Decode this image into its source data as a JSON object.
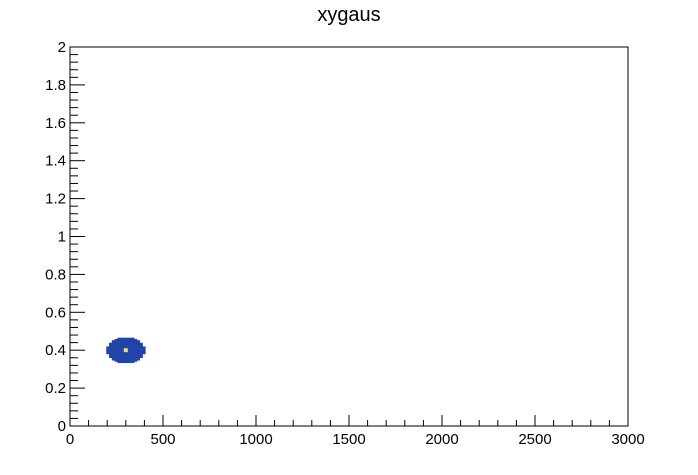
{
  "chart_data": {
    "type": "heatmap",
    "title": "xygaus",
    "xlim": [
      0,
      3000
    ],
    "ylim": [
      0,
      2
    ],
    "x_major_ticks": [
      0,
      500,
      1000,
      1500,
      2000,
      2500,
      3000
    ],
    "x_tick_labels": [
      "0",
      "500",
      "1000",
      "1500",
      "2000",
      "2500",
      "3000"
    ],
    "y_major_ticks": [
      0,
      0.2,
      0.4,
      0.6,
      0.8,
      1,
      1.2,
      1.4,
      1.6,
      1.8,
      2
    ],
    "y_tick_labels": [
      "0",
      "0.2",
      "0.4",
      "0.6",
      "0.8",
      "1",
      "1.2",
      "1.4",
      "1.6",
      "1.8",
      "2"
    ],
    "x_minor_step": 100,
    "y_minor_step": 0.04,
    "grid": false,
    "legend": "none",
    "blob": {
      "center_x": 300,
      "center_y": 0.4,
      "sigma_x": 60,
      "sigma_y": 0.038,
      "cell_x": 15,
      "cell_y": 0.0066,
      "color_main": "#2244aa",
      "color_peak": "#e8e070"
    }
  }
}
